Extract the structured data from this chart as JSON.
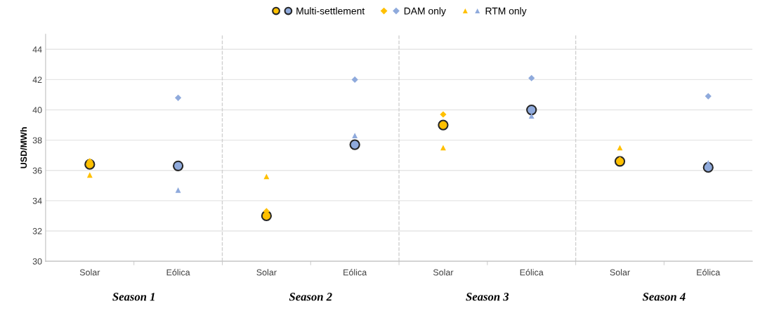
{
  "chart_data": {
    "type": "scatter",
    "ylabel": "USD/MWh",
    "categories": [
      "Solar",
      "Eólica",
      "Solar",
      "Eólica",
      "Solar",
      "Eólica",
      "Solar",
      "Eólica"
    ],
    "series": [
      {
        "name": "DAM only",
        "marker": "diamond",
        "colors": [
          "#ffc000",
          "#8faadc",
          "#ffc000",
          "#8faadc",
          "#ffc000",
          "#8faadc",
          "#ffc000",
          "#8faadc"
        ],
        "values": [
          36.6,
          40.8,
          33.3,
          42.0,
          39.7,
          42.1,
          36.7,
          40.9
        ]
      },
      {
        "name": "RTM only",
        "marker": "triangle",
        "colors": [
          "#ffc000",
          "#8faadc",
          "#ffc000",
          "#8faadc",
          "#ffc000",
          "#8faadc",
          "#ffc000",
          "#8faadc"
        ],
        "values": [
          35.7,
          34.7,
          35.6,
          38.3,
          37.5,
          39.6,
          37.5,
          36.5
        ]
      },
      {
        "name": "Multi-settlement",
        "marker": "circle",
        "colors": [
          "#ffc000",
          "#8faadc",
          "#ffc000",
          "#8faadc",
          "#ffc000",
          "#8faadc",
          "#ffc000",
          "#8faadc"
        ],
        "values": [
          36.4,
          36.3,
          33.0,
          37.7,
          39.0,
          40.0,
          36.6,
          36.2
        ]
      }
    ],
    "ylim": [
      30,
      45
    ],
    "yticks": [
      30,
      32,
      34,
      36,
      38,
      40,
      42,
      44
    ],
    "grid": "y",
    "legend": "top",
    "annotations": [
      "Season 1",
      "Season 2",
      "Season 3",
      "Season 4"
    ]
  }
}
